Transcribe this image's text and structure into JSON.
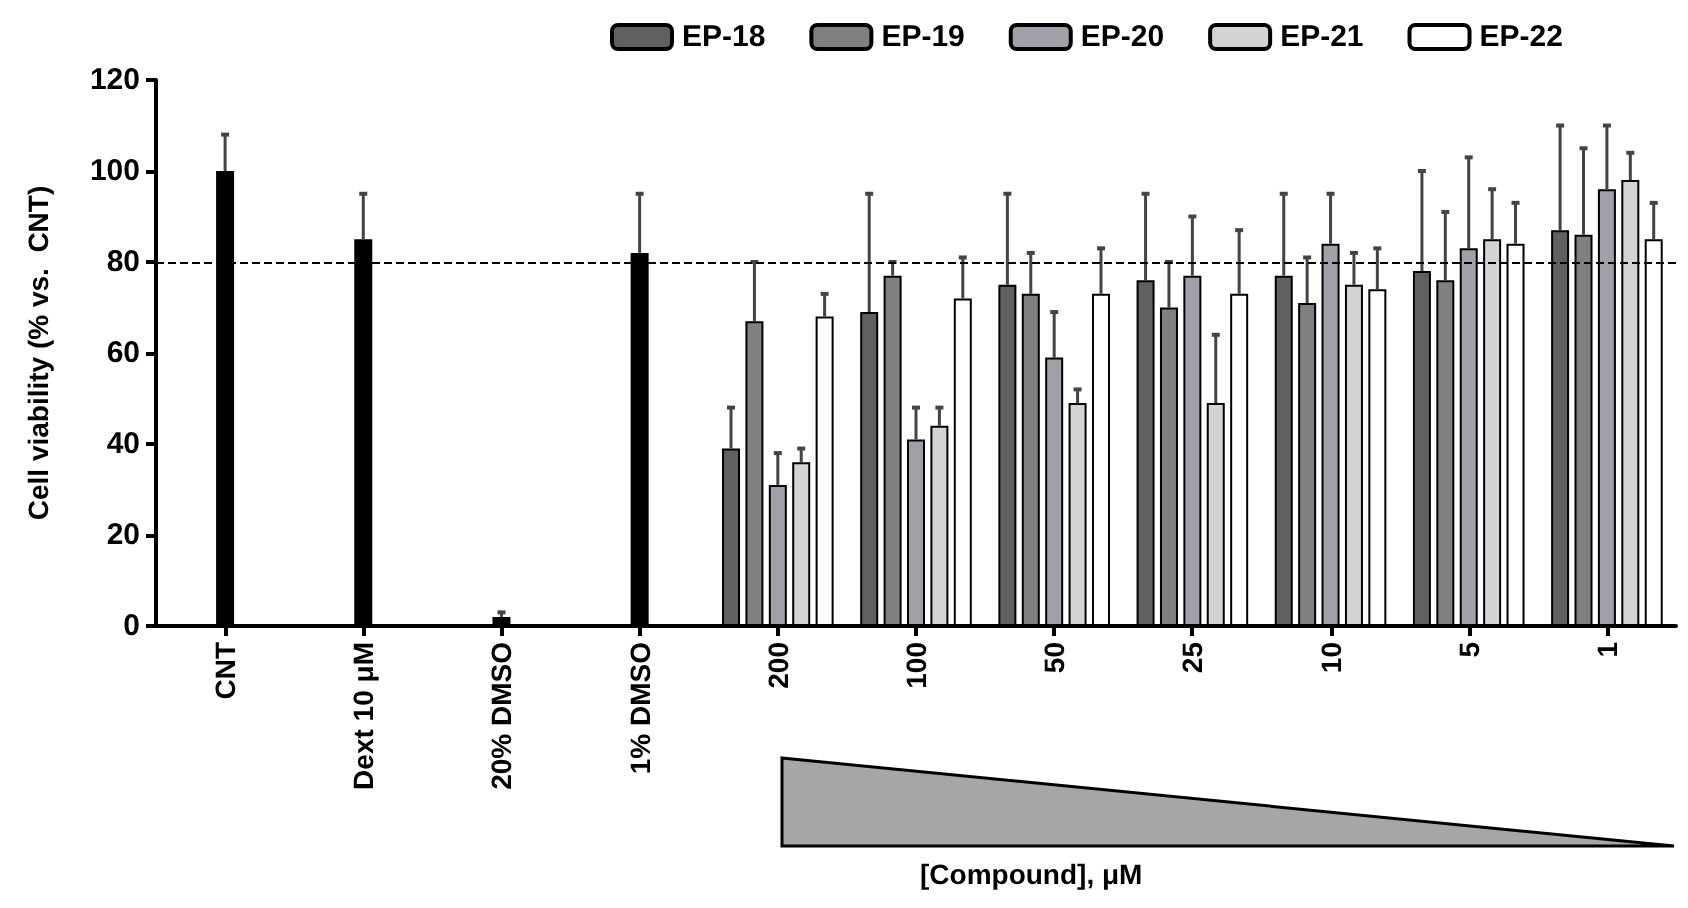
{
  "chart_data": {
    "type": "bar",
    "ylabel": "Cell viability (% vs.  CNT)",
    "annotations": [
      "[Compound], μM"
    ],
    "categories": [
      "CNT",
      "Dext 10 μM",
      "20% DMSO",
      "1% DMSO",
      "200",
      "100",
      "50",
      "25",
      "10",
      "5",
      "1"
    ],
    "series": [
      {
        "color": "#000000",
        "values": [
          100,
          85,
          2,
          82,
          null,
          null,
          null,
          null,
          null,
          null,
          null
        ],
        "errors": [
          [
            100,
            108
          ],
          [
            85,
            95
          ],
          [
            2,
            3
          ],
          [
            82,
            95
          ],
          null,
          null,
          null,
          null,
          null,
          null,
          null
        ]
      },
      {
        "name": "EP-18",
        "color": "#606060",
        "values": [
          null,
          null,
          null,
          null,
          39,
          69,
          75,
          76,
          77,
          78,
          87
        ],
        "errors": [
          null,
          null,
          null,
          null,
          [
            39,
            48
          ],
          [
            69,
            95
          ],
          [
            75,
            95
          ],
          [
            76,
            95
          ],
          [
            77,
            95
          ],
          [
            78,
            100
          ],
          [
            87,
            110
          ]
        ]
      },
      {
        "name": "EP-19",
        "color": "#808080",
        "values": [
          null,
          null,
          null,
          null,
          67,
          77,
          73,
          70,
          71,
          76,
          86
        ],
        "errors": [
          null,
          null,
          null,
          null,
          [
            67,
            80
          ],
          [
            77,
            80
          ],
          [
            73,
            82
          ],
          [
            70,
            80
          ],
          [
            71,
            81
          ],
          [
            76,
            91
          ],
          [
            86,
            105
          ]
        ]
      },
      {
        "name": "EP-20",
        "color": "#a0a0a8",
        "values": [
          null,
          null,
          null,
          null,
          31,
          41,
          59,
          77,
          84,
          83,
          96
        ],
        "errors": [
          null,
          null,
          null,
          null,
          [
            31,
            38
          ],
          [
            41,
            48
          ],
          [
            59,
            69
          ],
          [
            77,
            90
          ],
          [
            84,
            95
          ],
          [
            83,
            103
          ],
          [
            96,
            110
          ]
        ]
      },
      {
        "name": "EP-21",
        "color": "#d3d3d3",
        "values": [
          null,
          null,
          null,
          null,
          36,
          44,
          49,
          49,
          75,
          85,
          98
        ],
        "errors": [
          null,
          null,
          null,
          null,
          [
            36,
            39
          ],
          [
            44,
            48
          ],
          [
            49,
            52
          ],
          [
            49,
            64
          ],
          [
            75,
            82
          ],
          [
            85,
            96
          ],
          [
            98,
            104
          ]
        ]
      },
      {
        "name": "EP-22",
        "color": "#ffffff",
        "values": [
          null,
          null,
          null,
          null,
          68,
          72,
          73,
          73,
          74,
          84,
          85
        ],
        "errors": [
          null,
          null,
          null,
          null,
          [
            68,
            73
          ],
          [
            72,
            81
          ],
          [
            73,
            83
          ],
          [
            73,
            87
          ],
          [
            74,
            83
          ],
          [
            84,
            93
          ],
          [
            85,
            93
          ]
        ]
      }
    ],
    "ylim": [
      0,
      120
    ],
    "yticks": [
      0,
      20,
      40,
      60,
      80,
      100,
      120
    ],
    "ref_lines": [
      {
        "axis": "y",
        "value": 80,
        "line_style": "dashed",
        "color": "#000000"
      }
    ],
    "legend": "top"
  }
}
